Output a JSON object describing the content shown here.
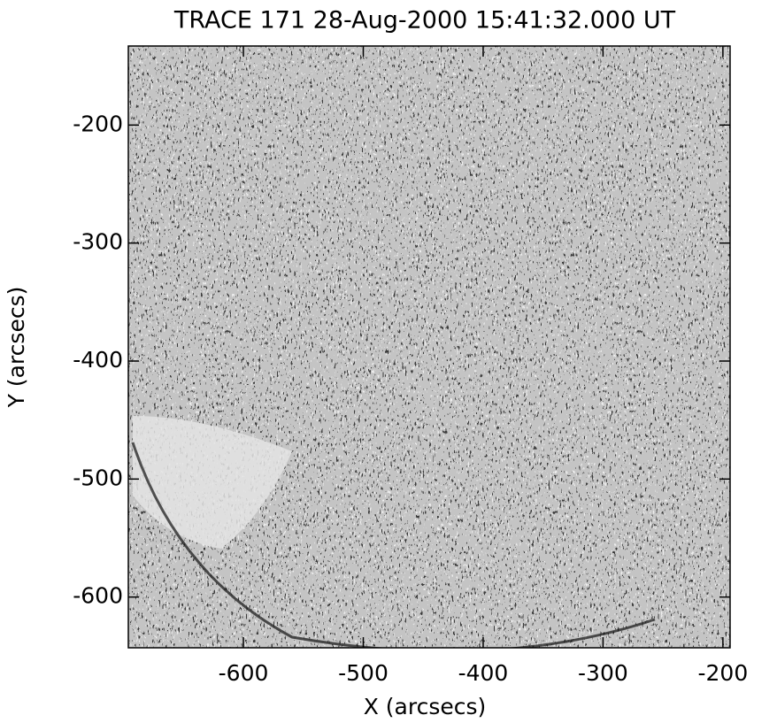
{
  "chart_data": {
    "type": "image",
    "title": "TRACE 171 28-Aug-2000 15:41:32.000 UT",
    "x_label": "X (arcsecs)",
    "y_label": "Y (arcsecs)",
    "xlim": [
      -696,
      -194
    ],
    "ylim": [
      -643,
      -133
    ],
    "xticks": [
      -600,
      -500,
      -400,
      -300,
      -200
    ],
    "yticks": [
      -200,
      -300,
      -400,
      -500,
      -600
    ]
  }
}
